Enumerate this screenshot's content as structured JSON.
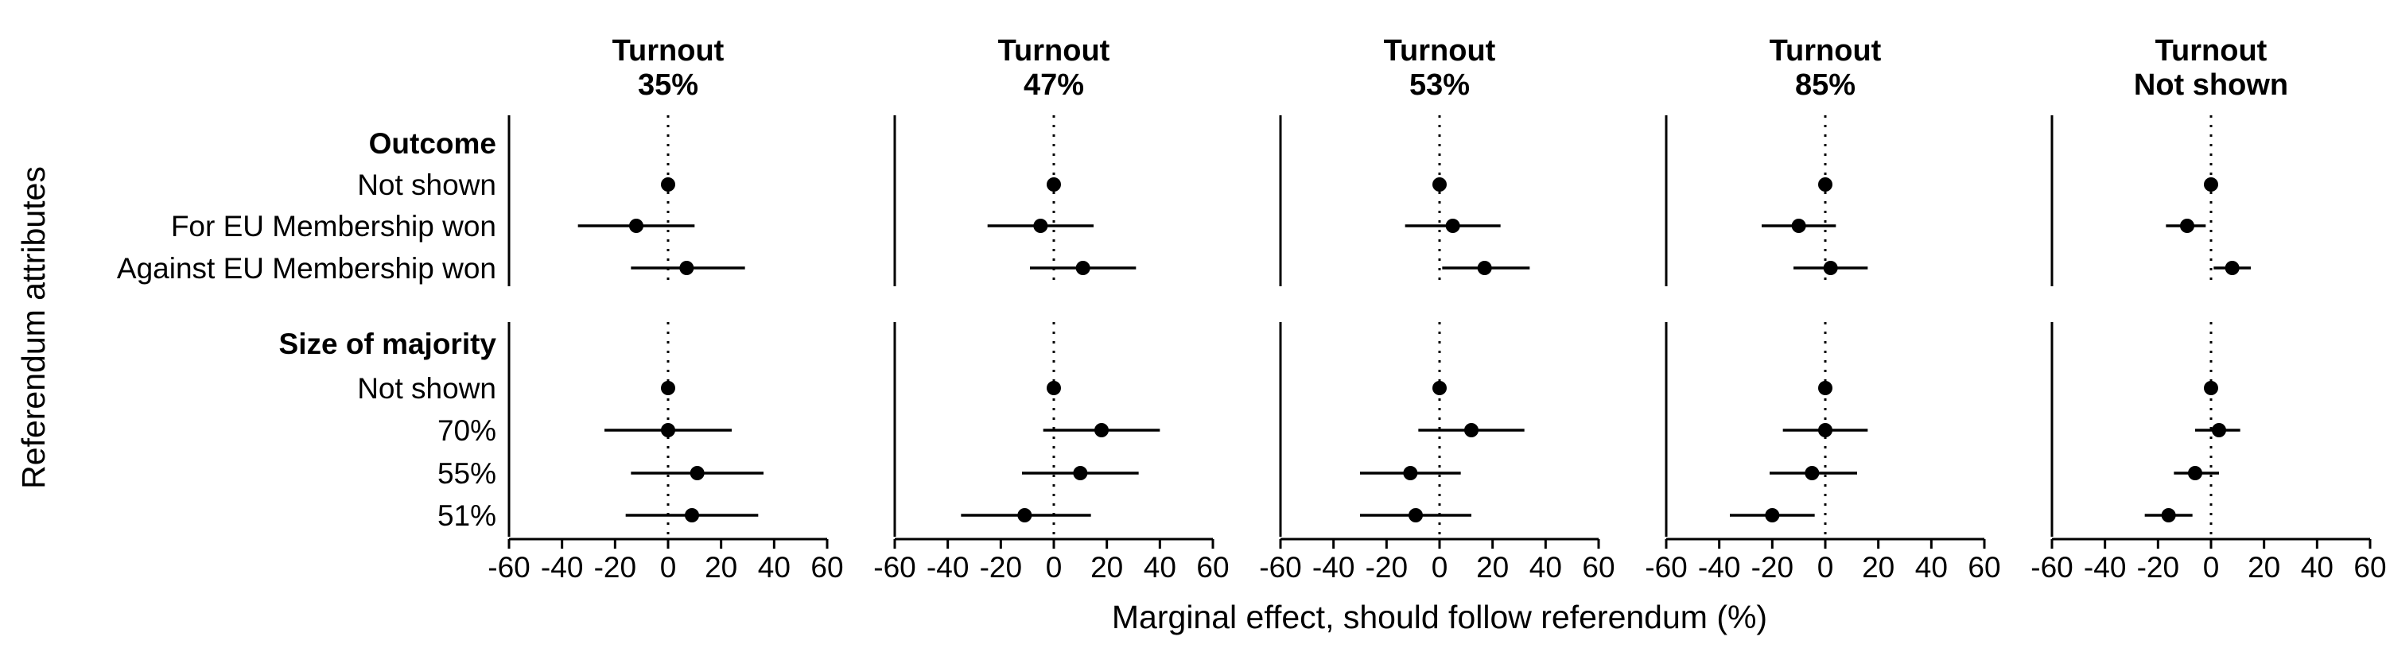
{
  "chart_data": {
    "type": "scatter",
    "style": "coefficient plot with 95% confidence intervals, faceted",
    "ylabel": "Referendum attributes",
    "xlabel": "Marginal effect, should follow referendum (%)",
    "xlim": [
      -60,
      60
    ],
    "xticks": [
      -60,
      -40,
      -20,
      0,
      20,
      40,
      60
    ],
    "xtick_labels": [
      "-60",
      "-40",
      "-20",
      "0",
      "20",
      "40",
      "60"
    ],
    "reference_line": 0,
    "grid": false,
    "groups": [
      {
        "name": "Outcome",
        "levels": [
          "Not shown",
          "For EU Membership won",
          "Against EU Membership won"
        ]
      },
      {
        "name": "Size of majority",
        "levels": [
          "Not shown",
          "70%",
          "55%",
          "51%"
        ]
      }
    ],
    "panels": [
      {
        "title": [
          "Turnout",
          "35%"
        ],
        "points": [
          {
            "group": 0,
            "level": 0,
            "est": 0,
            "lo": 0,
            "hi": 0
          },
          {
            "group": 0,
            "level": 1,
            "est": -12,
            "lo": -34,
            "hi": 10
          },
          {
            "group": 0,
            "level": 2,
            "est": 7,
            "lo": -14,
            "hi": 29
          },
          {
            "group": 1,
            "level": 0,
            "est": 0,
            "lo": 0,
            "hi": 0
          },
          {
            "group": 1,
            "level": 1,
            "est": 0,
            "lo": -24,
            "hi": 24
          },
          {
            "group": 1,
            "level": 2,
            "est": 11,
            "lo": -14,
            "hi": 36
          },
          {
            "group": 1,
            "level": 3,
            "est": 9,
            "lo": -16,
            "hi": 34
          }
        ]
      },
      {
        "title": [
          "Turnout",
          "47%"
        ],
        "points": [
          {
            "group": 0,
            "level": 0,
            "est": 0,
            "lo": 0,
            "hi": 0
          },
          {
            "group": 0,
            "level": 1,
            "est": -5,
            "lo": -25,
            "hi": 15
          },
          {
            "group": 0,
            "level": 2,
            "est": 11,
            "lo": -9,
            "hi": 31
          },
          {
            "group": 1,
            "level": 0,
            "est": 0,
            "lo": 0,
            "hi": 0
          },
          {
            "group": 1,
            "level": 1,
            "est": 18,
            "lo": -4,
            "hi": 40
          },
          {
            "group": 1,
            "level": 2,
            "est": 10,
            "lo": -12,
            "hi": 32
          },
          {
            "group": 1,
            "level": 3,
            "est": -11,
            "lo": -35,
            "hi": 14
          }
        ]
      },
      {
        "title": [
          "Turnout",
          "53%"
        ],
        "points": [
          {
            "group": 0,
            "level": 0,
            "est": 0,
            "lo": 0,
            "hi": 0
          },
          {
            "group": 0,
            "level": 1,
            "est": 5,
            "lo": -13,
            "hi": 23
          },
          {
            "group": 0,
            "level": 2,
            "est": 17,
            "lo": 1,
            "hi": 34
          },
          {
            "group": 1,
            "level": 0,
            "est": 0,
            "lo": 0,
            "hi": 0
          },
          {
            "group": 1,
            "level": 1,
            "est": 12,
            "lo": -8,
            "hi": 32
          },
          {
            "group": 1,
            "level": 2,
            "est": -11,
            "lo": -30,
            "hi": 8
          },
          {
            "group": 1,
            "level": 3,
            "est": -9,
            "lo": -30,
            "hi": 12
          }
        ]
      },
      {
        "title": [
          "Turnout",
          "85%"
        ],
        "points": [
          {
            "group": 0,
            "level": 0,
            "est": 0,
            "lo": 0,
            "hi": 0
          },
          {
            "group": 0,
            "level": 1,
            "est": -10,
            "lo": -24,
            "hi": 4
          },
          {
            "group": 0,
            "level": 2,
            "est": 2,
            "lo": -12,
            "hi": 16
          },
          {
            "group": 1,
            "level": 0,
            "est": 0,
            "lo": 0,
            "hi": 0
          },
          {
            "group": 1,
            "level": 1,
            "est": 0,
            "lo": -16,
            "hi": 16
          },
          {
            "group": 1,
            "level": 2,
            "est": -5,
            "lo": -21,
            "hi": 12
          },
          {
            "group": 1,
            "level": 3,
            "est": -20,
            "lo": -36,
            "hi": -4
          }
        ]
      },
      {
        "title": [
          "Turnout",
          "Not shown"
        ],
        "points": [
          {
            "group": 0,
            "level": 0,
            "est": 0,
            "lo": 0,
            "hi": 0
          },
          {
            "group": 0,
            "level": 1,
            "est": -9,
            "lo": -17,
            "hi": -2
          },
          {
            "group": 0,
            "level": 2,
            "est": 8,
            "lo": 1,
            "hi": 15
          },
          {
            "group": 1,
            "level": 0,
            "est": 0,
            "lo": 0,
            "hi": 0
          },
          {
            "group": 1,
            "level": 1,
            "est": 3,
            "lo": -6,
            "hi": 11
          },
          {
            "group": 1,
            "level": 2,
            "est": -6,
            "lo": -14,
            "hi": 3
          },
          {
            "group": 1,
            "level": 3,
            "est": -16,
            "lo": -25,
            "hi": -7
          }
        ]
      }
    ]
  }
}
